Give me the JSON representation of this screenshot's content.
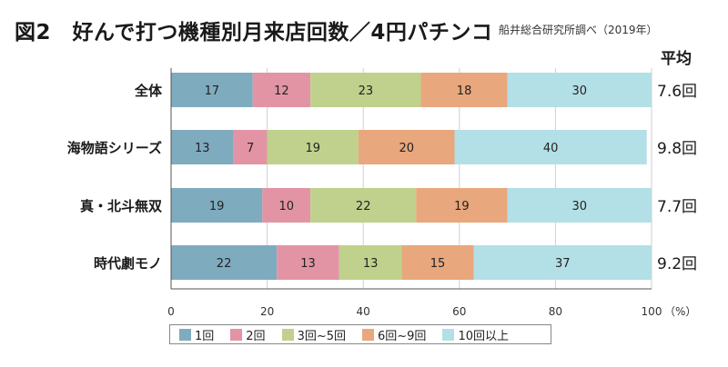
{
  "title": "図2　好んで打つ機種別月来店回数／4円パチンコ",
  "source": "船井総合研究所調べ（2019年）",
  "avg_header": "平均",
  "colors": [
    "#7fabbf",
    "#e294a5",
    "#bfd18c",
    "#e9a77d",
    "#b3dfe7"
  ],
  "chart_data": {
    "type": "bar",
    "orientation": "horizontal",
    "stacked": true,
    "categories": [
      "全体",
      "海物語シリーズ",
      "真・北斗無双",
      "時代劇モノ"
    ],
    "series": [
      {
        "name": "1回",
        "values": [
          17,
          13,
          19,
          22
        ]
      },
      {
        "name": "2回",
        "values": [
          12,
          7,
          10,
          13
        ]
      },
      {
        "name": "3回~5回",
        "values": [
          23,
          19,
          22,
          13
        ]
      },
      {
        "name": "6回~9回",
        "values": [
          18,
          20,
          19,
          15
        ]
      },
      {
        "name": "10回以上",
        "values": [
          30,
          40,
          30,
          37
        ]
      }
    ],
    "averages": [
      "7.6回",
      "9.8回",
      "7.7回",
      "9.2回"
    ],
    "xlim": [
      0,
      100
    ],
    "xticks": [
      "0",
      "20",
      "40",
      "60",
      "80",
      "100"
    ],
    "xunit": "（%）",
    "legend_position": "bottom"
  }
}
